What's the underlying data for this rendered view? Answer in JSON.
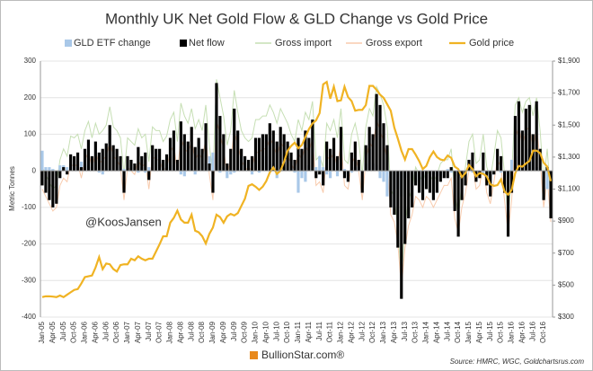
{
  "chart_data": {
    "type": "bar-line",
    "title": "Monthly UK Net Gold Flow & GLD Change vs Gold Price",
    "y_label": "Metric Tonnes",
    "source": "Source: HMRC, WGC, Goldchartsrus.com",
    "watermark": "@KoosJansen",
    "logo": "BullionStar.com®",
    "categories": [
      "Jan-05",
      null,
      null,
      "Apr-05",
      null,
      null,
      "Jul-05",
      null,
      null,
      "Oct-05",
      null,
      null,
      "Jan-06",
      null,
      null,
      "Apr-06",
      null,
      null,
      "Jul-06",
      null,
      null,
      "Oct-06",
      null,
      null,
      "Jan-07",
      null,
      null,
      "Apr-07",
      null,
      null,
      "Jul-07",
      null,
      null,
      "Oct-07",
      null,
      null,
      "Jan-08",
      null,
      null,
      "Apr-08",
      null,
      null,
      "Jul-08",
      null,
      null,
      "Oct-08",
      null,
      null,
      "Jan-09",
      null,
      null,
      "Apr-09",
      null,
      null,
      "Jul-09",
      null,
      null,
      "Oct-09",
      null,
      null,
      "Jan-10",
      null,
      null,
      "Apr-10",
      null,
      null,
      "Jul-10",
      null,
      null,
      "Oct-10",
      null,
      null,
      "Jan-11",
      null,
      null,
      "Apr-11",
      null,
      null,
      "Jul-11",
      null,
      null,
      "Oct-11",
      null,
      null,
      "Jan-12",
      null,
      null,
      "Apr-12",
      null,
      null,
      "Jul-12",
      null,
      null,
      "Oct-12",
      null,
      null,
      "Jan-13",
      null,
      null,
      "Apr-13",
      null,
      null,
      "Jul-13",
      null,
      null,
      "Oct-13",
      null,
      null,
      "Jan-14",
      null,
      null,
      "Apr-14",
      null,
      null,
      "Jul-14",
      null,
      null,
      "Oct-14",
      null,
      null,
      "Jan-15",
      null,
      null,
      "Apr-15",
      null,
      null,
      "Jul-15",
      null,
      null,
      "Oct-15",
      null,
      null,
      "Jan-16",
      null,
      null,
      "Apr-16",
      null,
      null,
      "Jul-16",
      null,
      null,
      "Oct-16",
      null,
      null
    ],
    "ylim": [
      -400,
      300
    ],
    "yticks": [
      -400,
      -300,
      -200,
      -100,
      0,
      100,
      200,
      300
    ],
    "y2lim": [
      300,
      1900
    ],
    "y2ticks": [
      {
        "value": 300,
        "label": "$300"
      },
      {
        "value": 500,
        "label": "$500"
      },
      {
        "value": 700,
        "label": "$700"
      },
      {
        "value": 900,
        "label": "$900"
      },
      {
        "value": 1100,
        "label": "$1,100"
      },
      {
        "value": 1300,
        "label": "$1,300"
      },
      {
        "value": 1500,
        "label": "$1,500"
      },
      {
        "value": 1700,
        "label": "$1,700"
      },
      {
        "value": 1900,
        "label": "$1,900"
      }
    ],
    "series": [
      {
        "name": "GLD ETF change",
        "kind": "bar",
        "color": "#a9c8e8",
        "values": [
          55,
          10,
          10,
          5,
          -5,
          15,
          15,
          10,
          20,
          10,
          20,
          25,
          20,
          15,
          10,
          25,
          -5,
          -10,
          5,
          5,
          0,
          5,
          15,
          5,
          5,
          15,
          10,
          -5,
          10,
          -5,
          10,
          0,
          45,
          25,
          20,
          10,
          40,
          15,
          5,
          -10,
          -15,
          30,
          5,
          -10,
          80,
          20,
          20,
          40,
          50,
          180,
          -5,
          10,
          -20,
          -10,
          -5,
          5,
          40,
          0,
          5,
          -10,
          0,
          -5,
          0,
          40,
          90,
          20,
          -20,
          10,
          10,
          5,
          10,
          -5,
          -60,
          -20,
          -30,
          15,
          5,
          10,
          40,
          10,
          -10,
          -20,
          30,
          -15,
          0,
          5,
          -10,
          -5,
          10,
          10,
          0,
          20,
          60,
          20,
          15,
          -20,
          -30,
          -70,
          -20,
          -100,
          -50,
          -70,
          -20,
          0,
          -20,
          -30,
          -30,
          -40,
          -20,
          0,
          -10,
          -10,
          -15,
          -5,
          5,
          -5,
          -15,
          -20,
          -10,
          -10,
          30,
          -5,
          -10,
          -5,
          -10,
          -10,
          -30,
          -10,
          0,
          -5,
          -10,
          -20,
          30,
          100,
          40,
          20,
          30,
          60,
          40,
          10,
          5,
          -20,
          -50,
          -20
        ]
      },
      {
        "name": "Net flow",
        "kind": "bar",
        "color": "#000000",
        "values": [
          -40,
          -60,
          -80,
          -100,
          -90,
          -20,
          10,
          -10,
          45,
          40,
          50,
          10,
          60,
          85,
          40,
          80,
          50,
          60,
          75,
          125,
          70,
          60,
          40,
          -60,
          40,
          30,
          20,
          65,
          40,
          50,
          -25,
          70,
          60,
          60,
          30,
          45,
          90,
          110,
          30,
          135,
          100,
          80,
          120,
          65,
          90,
          60,
          130,
          20,
          -60,
          240,
          150,
          100,
          20,
          60,
          170,
          110,
          60,
          40,
          30,
          40,
          90,
          90,
          100,
          100,
          130,
          110,
          80,
          120,
          100,
          80,
          50,
          30,
          90,
          60,
          110,
          90,
          140,
          -20,
          -10,
          -40,
          80,
          60,
          90,
          40,
          120,
          -20,
          -30,
          50,
          80,
          30,
          -60,
          70,
          120,
          100,
          210,
          180,
          130,
          70,
          -100,
          -120,
          -210,
          -350,
          -200,
          -130,
          -100,
          -40,
          -60,
          -80,
          -50,
          -60,
          -80,
          -60,
          -30,
          -20,
          -20,
          10,
          -110,
          -180,
          -80,
          -40,
          30,
          50,
          -30,
          -20,
          50,
          -40,
          -70,
          -10,
          60,
          40,
          -60,
          -180,
          -60,
          150,
          190,
          110,
          170,
          180,
          100,
          190,
          60,
          -80,
          10,
          -130
        ]
      },
      {
        "name": "Gross import",
        "kind": "line",
        "color": "#c6dfb4",
        "values": [
          10,
          -10,
          -30,
          -50,
          -40,
          30,
          60,
          40,
          95,
          90,
          100,
          60,
          110,
          135,
          90,
          130,
          100,
          110,
          125,
          175,
          120,
          110,
          90,
          -10,
          90,
          80,
          70,
          115,
          90,
          100,
          25,
          120,
          110,
          110,
          80,
          95,
          140,
          160,
          80,
          185,
          150,
          130,
          170,
          115,
          140,
          110,
          180,
          70,
          -10,
          250,
          200,
          150,
          70,
          110,
          220,
          160,
          110,
          90,
          80,
          90,
          140,
          140,
          150,
          150,
          180,
          160,
          130,
          170,
          150,
          130,
          100,
          80,
          140,
          110,
          160,
          140,
          190,
          30,
          40,
          10,
          130,
          110,
          140,
          90,
          170,
          30,
          20,
          100,
          130,
          80,
          -10,
          120,
          170,
          150,
          230,
          210,
          180,
          120,
          -50,
          -70,
          -160,
          -300,
          -150,
          -80,
          -50,
          10,
          -10,
          -30,
          0,
          -10,
          -30,
          -10,
          20,
          30,
          30,
          60,
          -60,
          -130,
          -30,
          10,
          80,
          100,
          20,
          30,
          100,
          10,
          -20,
          40,
          110,
          90,
          -10,
          -130,
          -10,
          180,
          200,
          160,
          190,
          200,
          150,
          200,
          110,
          -30,
          60,
          -80
        ]
      },
      {
        "name": "Gross export",
        "kind": "line",
        "color": "#f8cbad",
        "values": [
          -50,
          -70,
          -90,
          -110,
          -100,
          -40,
          -20,
          -30,
          20,
          10,
          20,
          -20,
          30,
          50,
          10,
          50,
          20,
          30,
          40,
          80,
          40,
          30,
          10,
          -80,
          10,
          0,
          -10,
          30,
          10,
          20,
          -50,
          40,
          30,
          30,
          0,
          10,
          50,
          70,
          0,
          90,
          60,
          50,
          80,
          30,
          50,
          30,
          90,
          -10,
          -80,
          140,
          100,
          60,
          -10,
          30,
          110,
          70,
          30,
          10,
          0,
          10,
          50,
          50,
          60,
          60,
          90,
          70,
          40,
          80,
          60,
          40,
          20,
          0,
          50,
          30,
          70,
          50,
          90,
          -40,
          -30,
          -60,
          40,
          30,
          50,
          10,
          80,
          -40,
          -50,
          20,
          40,
          0,
          -80,
          30,
          80,
          60,
          140,
          110,
          80,
          30,
          -120,
          -140,
          -200,
          -320,
          -210,
          -150,
          -120,
          -70,
          -80,
          -100,
          -70,
          -80,
          -100,
          -80,
          -60,
          -40,
          -40,
          -20,
          -130,
          -170,
          -100,
          -60,
          0,
          20,
          -50,
          -40,
          20,
          -60,
          -90,
          -30,
          30,
          10,
          -80,
          -170,
          -80,
          90,
          120,
          70,
          110,
          120,
          60,
          120,
          30,
          -100,
          -20,
          -140
        ]
      },
      {
        "name": "Gold price",
        "kind": "line",
        "axis": "y2",
        "color": "#f0b323",
        "values": [
          425,
          430,
          430,
          428,
          425,
          435,
          425,
          440,
          455,
          470,
          475,
          510,
          550,
          555,
          560,
          610,
          675,
          600,
          635,
          630,
          600,
          585,
          625,
          630,
          630,
          665,
          655,
          680,
          665,
          655,
          665,
          665,
          710,
          755,
          805,
          805,
          890,
          920,
          965,
          910,
          890,
          890,
          940,
          840,
          830,
          805,
          760,
          820,
          860,
          940,
          925,
          890,
          930,
          945,
          935,
          950,
          995,
          1040,
          1120,
          1130,
          1115,
          1095,
          1115,
          1150,
          1205,
          1235,
          1195,
          1215,
          1270,
          1340,
          1370,
          1390,
          1355,
          1375,
          1425,
          1475,
          1510,
          1530,
          1575,
          1755,
          1770,
          1665,
          1740,
          1650,
          1655,
          1740,
          1675,
          1650,
          1590,
          1595,
          1595,
          1625,
          1745,
          1745,
          1720,
          1690,
          1670,
          1630,
          1590,
          1485,
          1415,
          1340,
          1285,
          1350,
          1350,
          1315,
          1275,
          1225,
          1245,
          1300,
          1335,
          1300,
          1285,
          1280,
          1310,
          1295,
          1240,
          1225,
          1175,
          1200,
          1250,
          1225,
          1180,
          1200,
          1195,
          1180,
          1130,
          1120,
          1125,
          1160,
          1085,
          1065,
          1095,
          1200,
          1245,
          1240,
          1260,
          1275,
          1340,
          1340,
          1325,
          1265,
          1240,
          1150
        ]
      }
    ],
    "grid": true
  }
}
